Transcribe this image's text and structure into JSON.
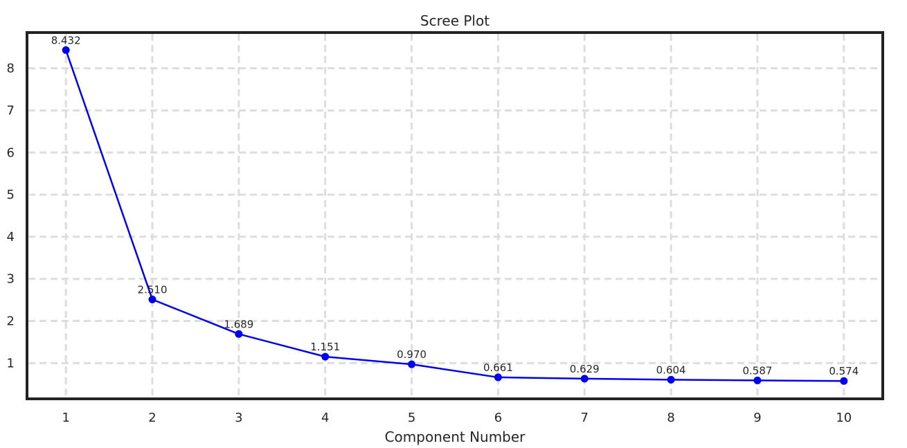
{
  "chart_data": {
    "type": "line",
    "title": "Scree Plot",
    "xlabel": "Component Number",
    "ylabel_visible": "",
    "x": [
      1,
      2,
      3,
      4,
      5,
      6,
      7,
      8,
      9,
      10
    ],
    "x_ticks": [
      "1",
      "2",
      "3",
      "4",
      "5",
      "6",
      "7",
      "8",
      "9",
      "10"
    ],
    "y_ticks": [
      "1",
      "2",
      "3",
      "4",
      "5",
      "6",
      "7",
      "8"
    ],
    "xlim": [
      0.55,
      10.45
    ],
    "ylim": [
      0.15,
      8.85
    ],
    "series": [
      {
        "values": [
          8.432,
          2.51,
          1.689,
          1.151,
          0.97,
          0.661,
          0.629,
          0.604,
          0.587,
          0.574
        ],
        "labels": [
          "8.432",
          "2.510",
          "1.689",
          "1.151",
          "0.970",
          "0.661",
          "0.629",
          "0.604",
          "0.587",
          "0.574"
        ],
        "color": "#0000ee"
      }
    ],
    "grid": true,
    "grid_style": "dashed",
    "grid_color": "#dddddd",
    "frame_color": "#222222",
    "text_color": "#262626"
  }
}
